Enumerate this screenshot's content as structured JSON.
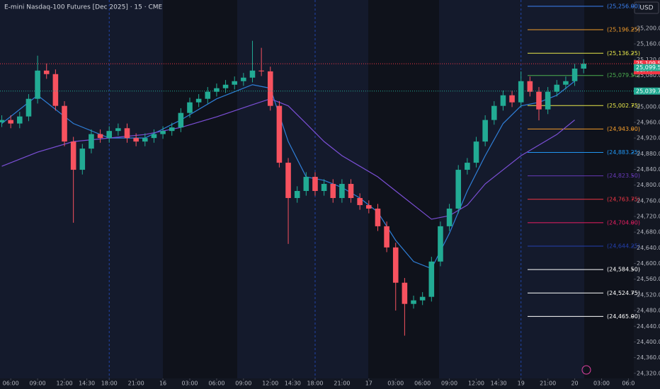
{
  "chart_data": {
    "type": "candlestick",
    "title": "E-mini Nasdaq-100 Futures [Dec 2025] · 15 · CME",
    "currency": "USD",
    "xlim": [
      -1.2,
      69.6
    ],
    "ylim": [
      24307,
      25272
    ],
    "xticks": [
      {
        "value": 0,
        "label": "06:00"
      },
      {
        "value": 3,
        "label": "09:00"
      },
      {
        "value": 6,
        "label": "12:00"
      },
      {
        "value": 8.5,
        "label": "14:30"
      },
      {
        "value": 11,
        "label": "18:00"
      },
      {
        "value": 14,
        "label": "21:00"
      },
      {
        "value": 17,
        "label": "16"
      },
      {
        "value": 20,
        "label": "03:00"
      },
      {
        "value": 23,
        "label": "06:00"
      },
      {
        "value": 26,
        "label": "09:00"
      },
      {
        "value": 29,
        "label": "12:00"
      },
      {
        "value": 31.5,
        "label": "14:30"
      },
      {
        "value": 34,
        "label": "18:00"
      },
      {
        "value": 37,
        "label": "21:00"
      },
      {
        "value": 40,
        "label": "17"
      },
      {
        "value": 43,
        "label": "03:00"
      },
      {
        "value": 46,
        "label": "06:00"
      },
      {
        "value": 49,
        "label": "09:00"
      },
      {
        "value": 52,
        "label": "12:00"
      },
      {
        "value": 54.5,
        "label": "14:30"
      },
      {
        "value": 57,
        "label": "19"
      },
      {
        "value": 60,
        "label": "21:00"
      },
      {
        "value": 63,
        "label": "20"
      },
      {
        "value": 66,
        "label": "03:00"
      },
      {
        "value": 69,
        "label": "06:0"
      }
    ],
    "yticks": [
      {
        "value": 24320,
        "label": "24,320.00"
      },
      {
        "value": 24360,
        "label": "24,360.00"
      },
      {
        "value": 24400,
        "label": "24,400.00"
      },
      {
        "value": 24440,
        "label": "24,440.00"
      },
      {
        "value": 24480,
        "label": "24,480.00"
      },
      {
        "value": 24520,
        "label": "24,520.00"
      },
      {
        "value": 24560,
        "label": "24,560.00"
      },
      {
        "value": 24600,
        "label": "24,600.00"
      },
      {
        "value": 24640,
        "label": "24,640.00"
      },
      {
        "value": 24680,
        "label": "24,680.00"
      },
      {
        "value": 24720,
        "label": "24,720.00"
      },
      {
        "value": 24760,
        "label": "24,760.00"
      },
      {
        "value": 24800,
        "label": "24,800.00"
      },
      {
        "value": 24840,
        "label": "24,840.00"
      },
      {
        "value": 24880,
        "label": "24,880.00"
      },
      {
        "value": 24920,
        "label": "24,920.00"
      },
      {
        "value": 24960,
        "label": "24,960.00"
      },
      {
        "value": 25000,
        "label": "25,000.00"
      },
      {
        "value": 25040,
        "label": "25,040.00"
      },
      {
        "value": 25080,
        "label": "25,080.00"
      },
      {
        "value": 25120,
        "label": "25,120.00"
      },
      {
        "value": 25160,
        "label": "25,160.00"
      },
      {
        "value": 25200,
        "label": "25,200.00"
      }
    ],
    "up_color": "#22ab94",
    "down_color": "#f7525f",
    "x": [
      -1,
      0,
      1,
      2,
      3,
      4,
      5,
      6,
      7,
      8,
      9,
      10,
      11,
      12,
      13,
      14,
      15,
      16,
      17,
      18,
      19,
      20,
      21,
      22,
      23,
      24,
      25,
      26,
      27,
      28,
      29,
      30,
      31,
      32,
      33,
      34,
      35,
      36,
      37,
      38,
      39,
      40,
      41,
      42,
      43,
      44,
      45,
      46,
      47,
      48,
      49,
      50,
      51,
      52,
      53,
      54,
      55,
      56,
      57,
      58,
      59,
      60,
      61,
      62,
      63,
      64
    ],
    "open": [
      24960,
      24966,
      24957,
      24975,
      25020,
      25092,
      25083,
      25002,
      24911,
      24839,
      24893,
      24930,
      24920,
      24938,
      24945,
      24920,
      24911,
      24920,
      24930,
      24938,
      24947,
      24984,
      25011,
      25020,
      25038,
      25047,
      25056,
      25065,
      25074,
      25092,
      25090,
      25002,
      24857,
      24767,
      24785,
      24821,
      24785,
      24803,
      24767,
      24803,
      24767,
      24749,
      24740,
      24695,
      24641,
      24551,
      24497,
      24506,
      24515,
      24605,
      24695,
      24740,
      24839,
      24857,
      24911,
      24966,
      25002,
      25029,
      25011,
      25065,
      25038,
      24993,
      25038,
      25056,
      25065,
      25097
    ],
    "high": [
      24978,
      24978,
      24987,
      25032,
      25130,
      25110,
      25095,
      25014,
      24923,
      24905,
      24942,
      24942,
      24950,
      24957,
      24957,
      24932,
      24932,
      24942,
      24950,
      24959,
      24996,
      25023,
      25032,
      25050,
      25059,
      25068,
      25077,
      25086,
      25168,
      25150,
      25102,
      25014,
      24869,
      24797,
      24833,
      24833,
      24815,
      24815,
      24815,
      24815,
      24779,
      24761,
      24752,
      24707,
      24653,
      24563,
      24518,
      24527,
      24617,
      24707,
      24752,
      24851,
      24869,
      24923,
      24978,
      25014,
      25041,
      25041,
      25090,
      25077,
      25050,
      25050,
      25068,
      25077,
      25109,
      25121
    ],
    "low": [
      24948,
      24945,
      24945,
      24963,
      25008,
      25071,
      24990,
      24899,
      24704,
      24827,
      24881,
      24908,
      24908,
      24926,
      24908,
      24899,
      24899,
      24908,
      24918,
      24926,
      24935,
      24972,
      24999,
      25008,
      25026,
      25035,
      25044,
      25053,
      25062,
      25078,
      24990,
      24845,
      24650,
      24755,
      24773,
      24773,
      24773,
      24755,
      24755,
      24755,
      24737,
      24728,
      24683,
      24629,
      24480,
      24416,
      24485,
      24494,
      24503,
      24593,
      24683,
      24728,
      24827,
      24845,
      24899,
      24954,
      24990,
      24999,
      24999,
      25026,
      24965,
      24981,
      25026,
      25044,
      25053,
      25085
    ],
    "close": [
      24966,
      24957,
      24975,
      25020,
      25092,
      25083,
      25002,
      24911,
      24839,
      24893,
      24930,
      24920,
      24938,
      24945,
      24920,
      24911,
      24920,
      24930,
      24938,
      24947,
      24984,
      25011,
      25020,
      25038,
      25047,
      25056,
      25065,
      25074,
      25092,
      25090,
      25002,
      24857,
      24767,
      24785,
      24821,
      24785,
      24803,
      24767,
      24803,
      24767,
      24749,
      24740,
      24695,
      24641,
      24551,
      24497,
      24506,
      24515,
      24605,
      24695,
      24740,
      24839,
      24857,
      24911,
      24966,
      25002,
      25029,
      25011,
      25065,
      25038,
      24993,
      25038,
      25056,
      25065,
      25097,
      25109.5
    ],
    "lines": [
      {
        "color": "#2f7fd8",
        "x": [
          -1,
          3,
          7,
          11,
          15,
          19,
          23,
          27,
          29,
          31,
          33,
          35,
          37,
          39,
          41,
          43,
          45,
          47,
          49,
          51,
          53,
          55,
          57,
          59,
          61,
          63
        ],
        "values": [
          24957,
          25029,
          24957,
          24920,
          24920,
          24966,
          25020,
          25056,
          25047,
          24911,
          24821,
          24812,
          24794,
          24767,
          24731,
          24659,
          24605,
          24587,
          24677,
          24785,
          24875,
          24957,
          25002,
          25011,
          25029,
          25065
        ]
      },
      {
        "color": "#7b4fd6",
        "x": [
          -1,
          3,
          7,
          11,
          15,
          19,
          23,
          27,
          29,
          31,
          33,
          35,
          37,
          39,
          41,
          43,
          45,
          47,
          49,
          51,
          53,
          55,
          57,
          59,
          61,
          63
        ],
        "values": [
          24848,
          24884,
          24911,
          24920,
          24929,
          24947,
          24974,
          25005,
          25020,
          25002,
          24957,
          24911,
          24875,
          24848,
          24821,
          24785,
          24749,
          24713,
          24722,
          24749,
          24803,
          24839,
          24875,
          24902,
          24929,
          24966
        ]
      }
    ],
    "session_lines": [
      11,
      34,
      57
    ],
    "levels": [
      {
        "value": 25256,
        "label": "(25,256.00)",
        "color": "#3b82f6"
      },
      {
        "value": 25196.25,
        "label": "(25,196.25)",
        "color": "#f59d2a"
      },
      {
        "value": 25136.25,
        "label": "(25,136.25)",
        "color": "#e8e84a"
      },
      {
        "value": 25079.5,
        "label": "(25,079.50)",
        "color": "#4caf50"
      },
      {
        "value": 25002.75,
        "label": "(25,002.75)",
        "color": "#e8e84a"
      },
      {
        "value": 24943,
        "label": "(24,943.00)",
        "color": "#f59d2a"
      },
      {
        "value": 24883.25,
        "label": "(24,883.25)",
        "color": "#2196f3"
      },
      {
        "value": 24823.5,
        "label": "(24,823.50)",
        "color": "#673ab7"
      },
      {
        "value": 24763.75,
        "label": "(24,763.75)",
        "color": "#f23645"
      },
      {
        "value": 24704,
        "label": "(24,704.00)",
        "color": "#e91e63"
      },
      {
        "value": 24644.25,
        "label": "(24,644.25)",
        "color": "#2340b0"
      },
      {
        "value": 24584.5,
        "label": "(24,584.50)",
        "color": "#ffffff"
      },
      {
        "value": 24524.75,
        "label": "(24,524.75)",
        "color": "#ffffff"
      },
      {
        "value": 24465,
        "label": "(24,465.00)",
        "color": "#ffffff"
      }
    ],
    "price_tags": [
      {
        "value": 25109.5,
        "label": "25,109.50",
        "color": "#f23645",
        "countdown": "06:44"
      },
      {
        "value": 25099.5,
        "label": "25,099.50",
        "color": "#22ab94"
      },
      {
        "value": 25039.75,
        "label": "25,039.75",
        "color": "#22ab94"
      }
    ]
  }
}
